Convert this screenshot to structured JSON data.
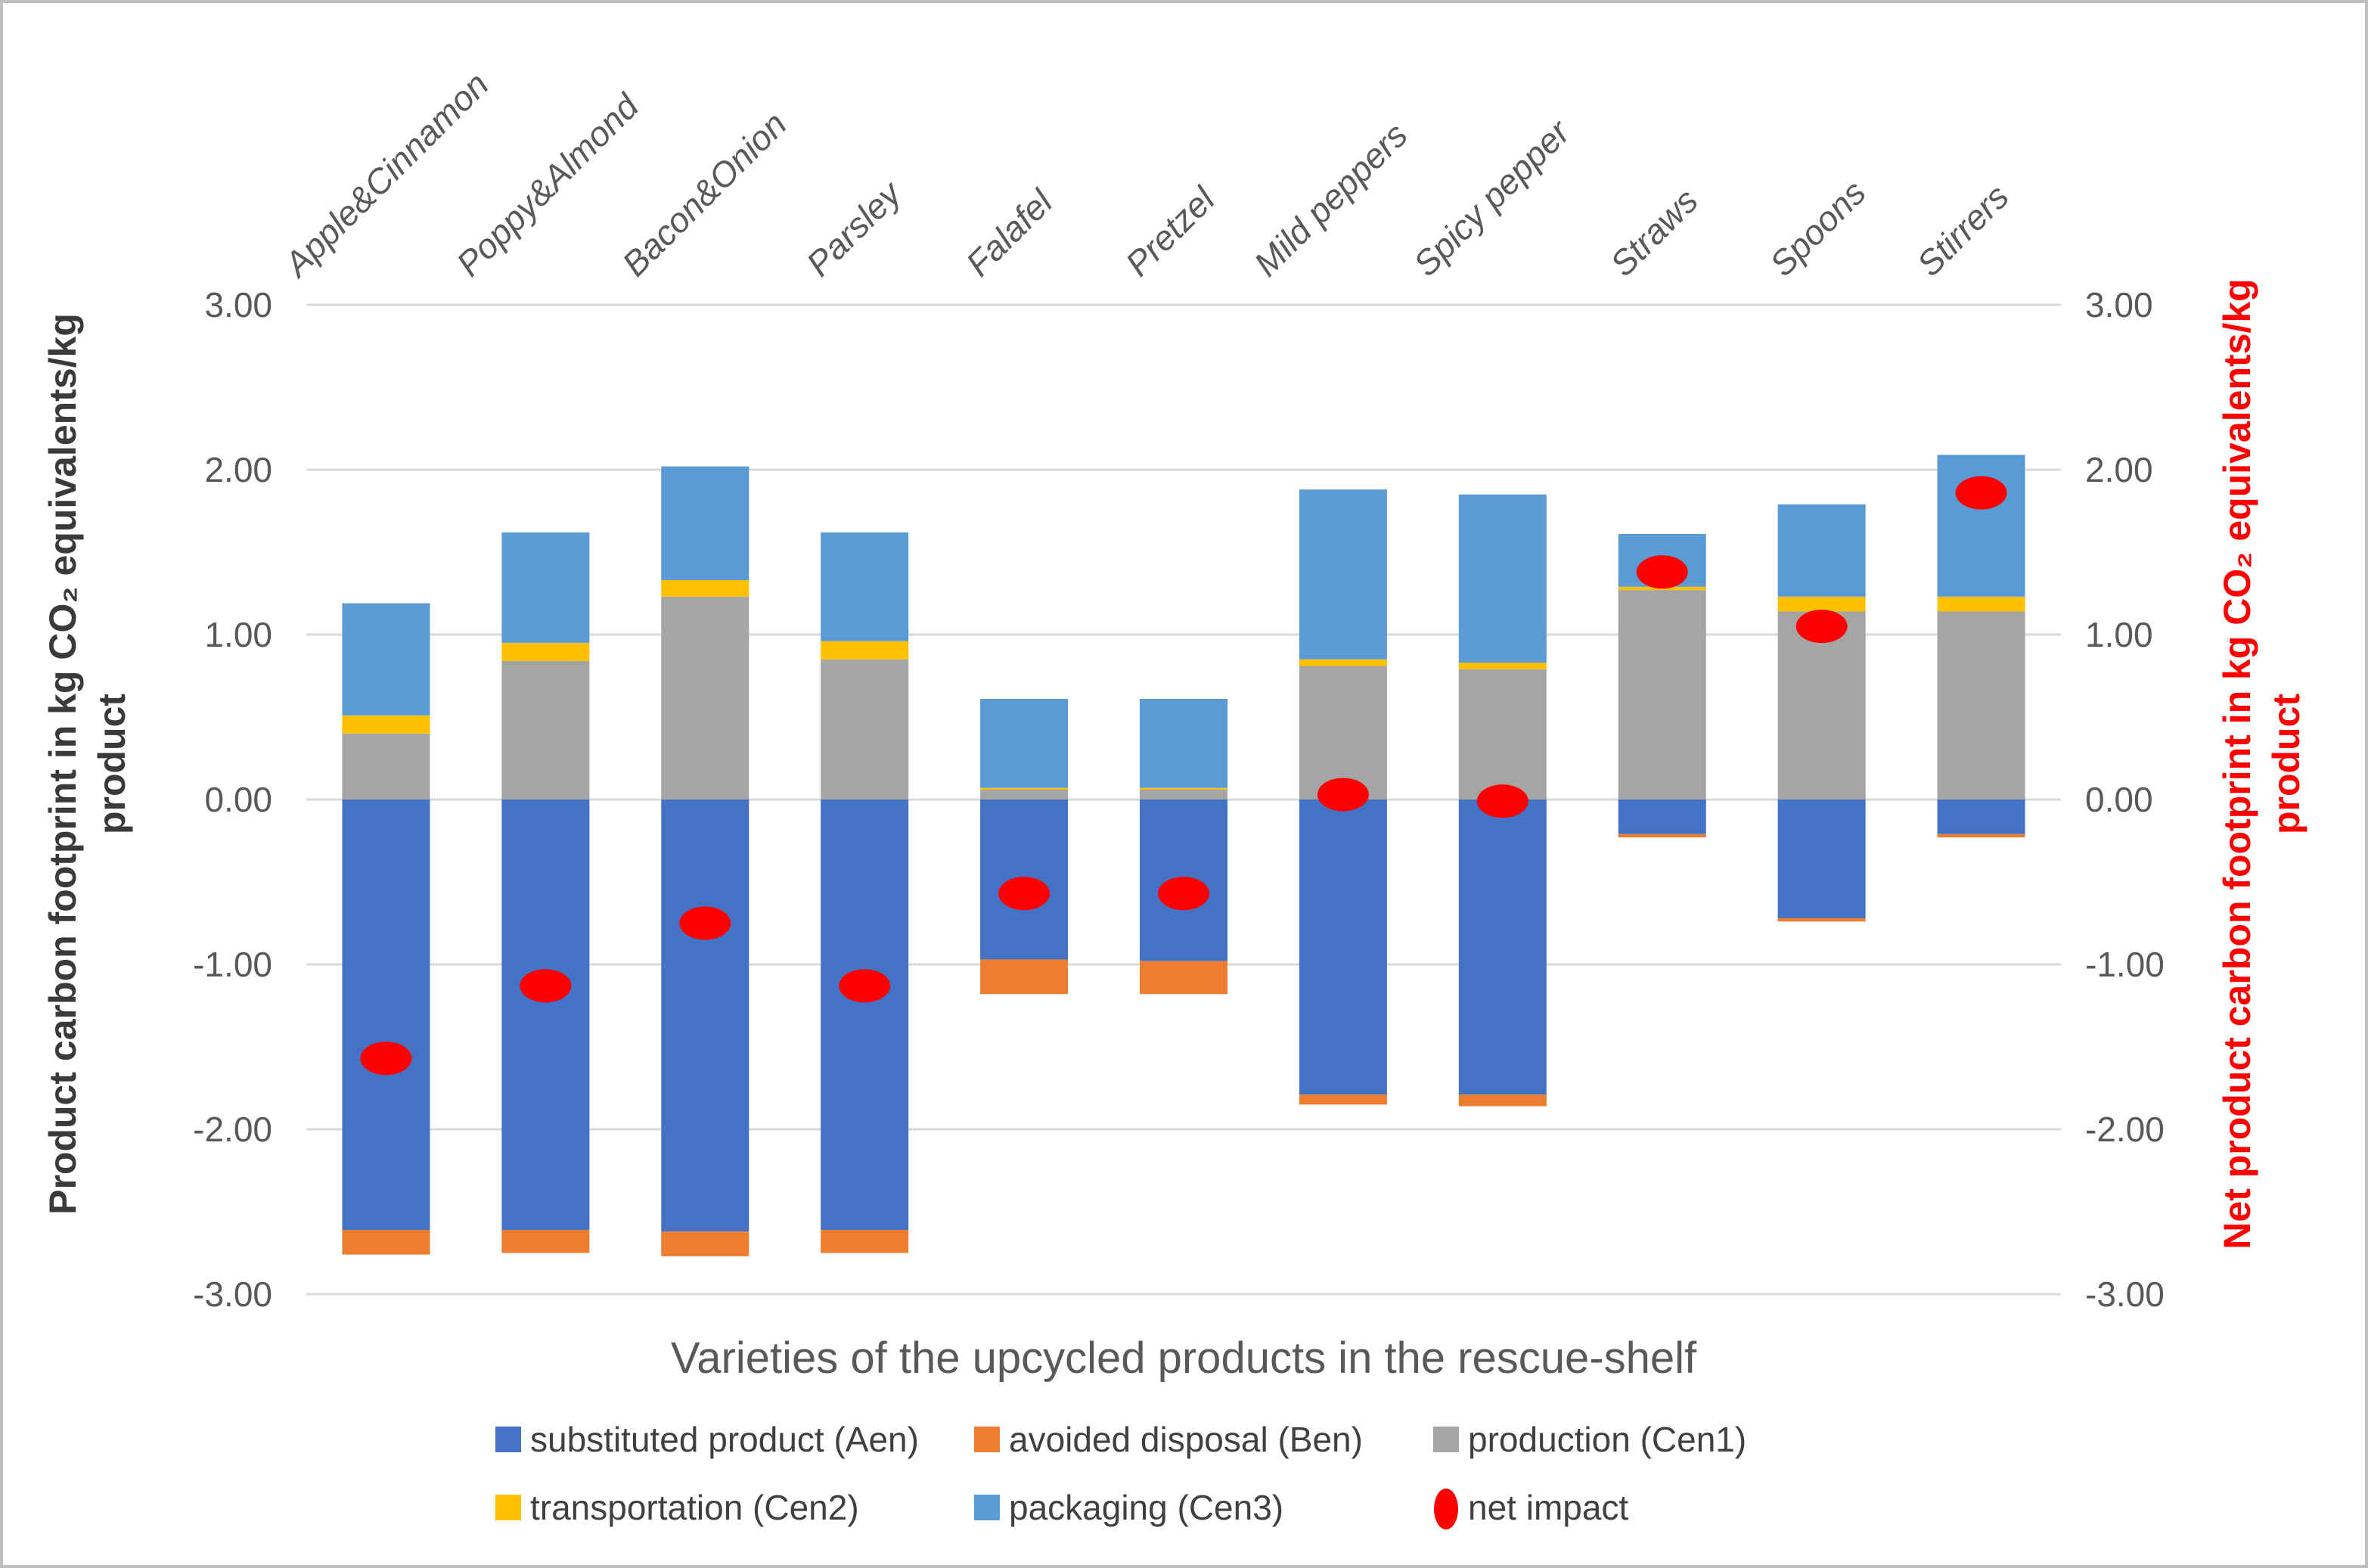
{
  "figure": {
    "background": "#FFFFFF",
    "border_color": "#BFBFBF",
    "gridline_color": "#D9D9D9",
    "tick_text_color": "#595959"
  },
  "chart_data": {
    "type": "bar",
    "subtype": "stacked-bar-with-net-scatter",
    "title": "",
    "xlabel": "Varieties of the upcycled products in the rescue-shelf",
    "ylabel": "Product carbon footprint in kg CO₂ equivalents/kg product",
    "ylabel_right": "Net product carbon footprint in kg CO₂ equivalents/kg product",
    "ylabel_left_line1": "Product carbon footprint in kg CO₂ equivalents/kg",
    "ylabel_left_line2": "product",
    "ylabel_right_line1": "Net product carbon footprint in kg CO₂ equivalents/kg",
    "ylabel_right_line2": "product",
    "ylim": [
      -3.0,
      3.0
    ],
    "grid": true,
    "legend_position": "bottom",
    "yticks": [
      {
        "value": 3,
        "label": "3.00"
      },
      {
        "value": 2,
        "label": "2.00"
      },
      {
        "value": 1,
        "label": "1.00"
      },
      {
        "value": 0,
        "label": "0.00"
      },
      {
        "value": -1,
        "label": "-1.00"
      },
      {
        "value": -2,
        "label": "-2.00"
      },
      {
        "value": -3,
        "label": "-3.00"
      }
    ],
    "categories": [
      "Apple&Cinnamon",
      "Poppy&Almond",
      "Bacon&Onion",
      "Parsley",
      "Falafel",
      "Pretzel",
      "Mild peppers",
      "Spicy pepper",
      "Straws",
      "Spoons",
      "Stirrers"
    ],
    "series": [
      {
        "name": "substituted product (Aen)",
        "color": "#4472C4",
        "values": [
          -2.61,
          -2.61,
          -2.62,
          -2.61,
          -0.97,
          -0.98,
          -1.79,
          -1.79,
          -0.21,
          -0.72,
          -0.21
        ]
      },
      {
        "name": "avoided disposal (Ben)",
        "color": "#ED7D31",
        "values": [
          -0.15,
          -0.14,
          -0.15,
          -0.14,
          -0.21,
          -0.2,
          -0.06,
          -0.07,
          -0.02,
          -0.02,
          -0.02
        ]
      },
      {
        "name": "production (Cen1)",
        "color": "#A5A5A5",
        "values": [
          0.4,
          0.84,
          1.23,
          0.85,
          0.06,
          0.06,
          0.81,
          0.79,
          1.27,
          1.14,
          1.14
        ]
      },
      {
        "name": "transportation (Cen2)",
        "color": "#FFC000",
        "values": [
          0.11,
          0.11,
          0.1,
          0.11,
          0.01,
          0.01,
          0.04,
          0.04,
          0.02,
          0.09,
          0.09
        ]
      },
      {
        "name": "packaging (Cen3)",
        "color": "#5B9BD5",
        "values": [
          0.68,
          0.67,
          0.69,
          0.66,
          0.54,
          0.54,
          1.03,
          1.02,
          0.32,
          0.56,
          0.86
        ]
      }
    ],
    "net_series": {
      "name": "net impact",
      "color": "#FF0000",
      "values": [
        -1.57,
        -1.13,
        -0.75,
        -1.13,
        -0.57,
        -0.57,
        0.03,
        -0.01,
        1.38,
        1.05,
        1.86
      ]
    }
  }
}
